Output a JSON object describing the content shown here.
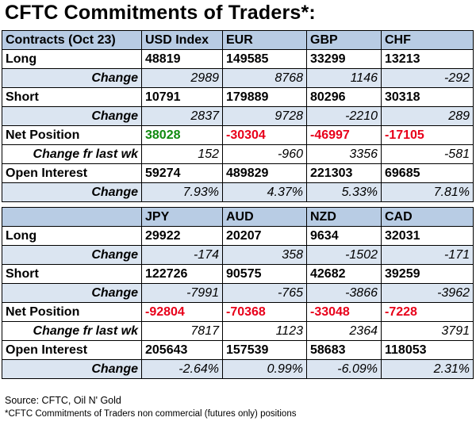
{
  "title": "CFTC Commitments of Traders*:",
  "colors": {
    "header_bg": "#b8cce4",
    "change_bg": "#dbe5f1",
    "positive": "#108a10",
    "negative": "#e8001a"
  },
  "labels": {
    "contracts": "Contracts (Oct 23)",
    "long": "Long",
    "change": "Change",
    "short": "Short",
    "net_position": "Net Position",
    "change_fr_last_wk": "Change fr last wk",
    "open_interest": "Open Interest"
  },
  "table1": {
    "currencies": [
      "USD Index",
      "EUR",
      "GBP",
      "CHF"
    ],
    "long": [
      "48819",
      "149585",
      "33299",
      "13213"
    ],
    "long_change": [
      "2989",
      "8768",
      "1146",
      "-292"
    ],
    "short": [
      "10791",
      "179889",
      "80296",
      "30318"
    ],
    "short_change": [
      "2837",
      "9728",
      "-2210",
      "289"
    ],
    "net_position": [
      "38028",
      "-30304",
      "-46997",
      "-17105"
    ],
    "net_change": [
      "152",
      "-960",
      "3356",
      "-581"
    ],
    "open_interest": [
      "59274",
      "489829",
      "221303",
      "69685"
    ],
    "oi_change": [
      "7.93%",
      "4.37%",
      "5.33%",
      "7.81%"
    ]
  },
  "table2": {
    "currencies": [
      "JPY",
      "AUD",
      "NZD",
      "CAD"
    ],
    "long": [
      "29922",
      "20207",
      "9634",
      "32031"
    ],
    "long_change": [
      "-174",
      "358",
      "-1502",
      "-171"
    ],
    "short": [
      "122726",
      "90575",
      "42682",
      "39259"
    ],
    "short_change": [
      "-7991",
      "-765",
      "-3866",
      "-3962"
    ],
    "net_position": [
      "-92804",
      "-70368",
      "-33048",
      "-7228"
    ],
    "net_change": [
      "7817",
      "1123",
      "2364",
      "3791"
    ],
    "open_interest": [
      "205643",
      "157539",
      "58683",
      "118053"
    ],
    "oi_change": [
      "-2.64%",
      "0.99%",
      "-6.09%",
      "2.31%"
    ]
  },
  "source": "Source: CFTC, Oil N' Gold",
  "footnote": "*CFTC Commitments of Traders non commercial (futures only) positions"
}
